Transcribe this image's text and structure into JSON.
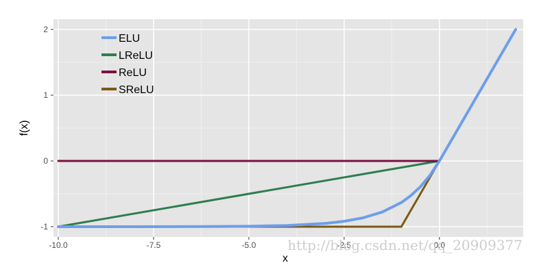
{
  "chart_data": {
    "type": "line",
    "title": "",
    "xlabel": "x",
    "ylabel": "f(x)",
    "xlim": [
      -10.2,
      10.2
    ],
    "ylim": [
      -1.1,
      2.05
    ],
    "x_ticks": [
      -10.0,
      -7.5,
      -5.0,
      -2.5,
      0.0
    ],
    "x_tick_labels": [
      "-10.0",
      "-7.5",
      "-5.0",
      "-2.5",
      "0.0"
    ],
    "y_ticks": [
      -1,
      0,
      1,
      2
    ],
    "y_tick_labels": [
      "-1",
      "0",
      "1",
      "2"
    ],
    "x_range_shown": [
      -10.0,
      2.0
    ],
    "grid": true,
    "background": "#e5e5e5",
    "legend_position": "top-left",
    "series": [
      {
        "name": "ELU",
        "color": "#6d9eeb",
        "x": [
          -10,
          -9,
          -8,
          -7,
          -6,
          -5,
          -4,
          -3,
          -2.5,
          -2,
          -1.5,
          -1,
          -0.75,
          -0.5,
          -0.25,
          0,
          0.5,
          1,
          1.5,
          2
        ],
        "y": [
          -1.0,
          -0.9999,
          -0.9997,
          -0.9991,
          -0.9975,
          -0.9933,
          -0.9817,
          -0.9502,
          -0.9179,
          -0.8647,
          -0.7769,
          -0.6321,
          -0.5276,
          -0.3935,
          -0.2212,
          0,
          0.5,
          1,
          1.5,
          2
        ]
      },
      {
        "name": "LReLU",
        "color": "#2e7d4f",
        "x": [
          -10,
          0,
          2
        ],
        "y": [
          -1.0,
          0,
          2
        ]
      },
      {
        "name": "ReLU",
        "color": "#7a1040",
        "x": [
          -10,
          0,
          2
        ],
        "y": [
          0,
          0,
          2
        ]
      },
      {
        "name": "SReLU",
        "color": "#7a5a12",
        "x": [
          -10,
          -1,
          0,
          2
        ],
        "y": [
          -1.0,
          -1.0,
          0,
          2
        ]
      }
    ]
  },
  "watermark": {
    "text": "http://blog.csdn.net/qq_20909377"
  }
}
